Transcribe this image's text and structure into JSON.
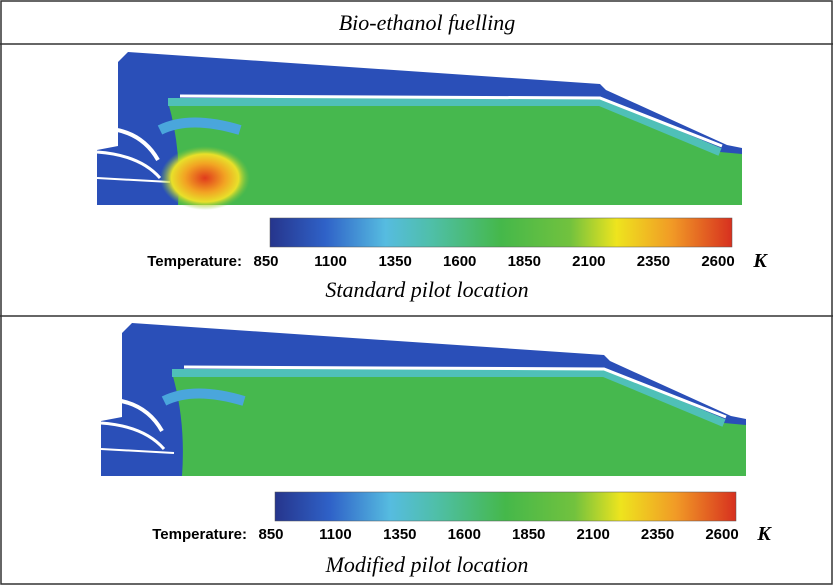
{
  "header": {
    "title": "Bio-ethanol fuelling"
  },
  "panels": [
    {
      "caption": "Standard pilot location",
      "colorbar": {
        "label": "Temperature:",
        "ticks": [
          850,
          1100,
          1350,
          1600,
          1850,
          2100,
          2350,
          2600
        ],
        "unit": "K"
      }
    },
    {
      "caption": "Modified pilot location",
      "colorbar": {
        "label": "Temperature:",
        "ticks": [
          850,
          1100,
          1350,
          1600,
          1850,
          2100,
          2350,
          2600
        ],
        "unit": "K"
      }
    }
  ]
}
